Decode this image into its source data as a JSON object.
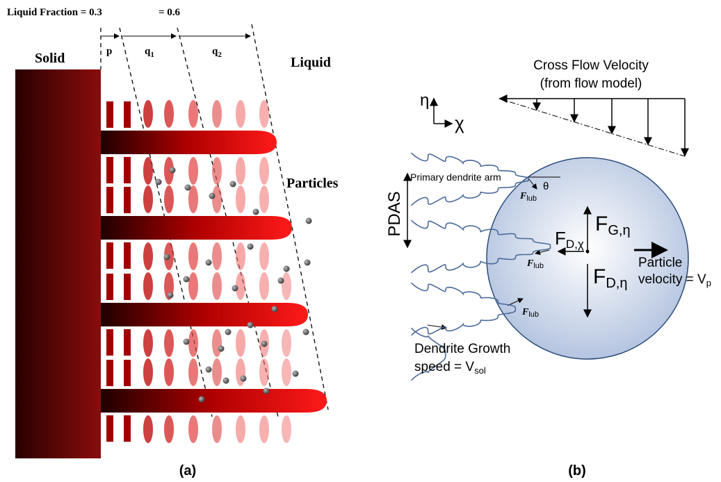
{
  "panel_a": {
    "liquid_fraction": "Liquid Fraction = 0.3",
    "second_fraction": "= 0.6",
    "zones": [
      {
        "main": "p",
        "sub": ""
      },
      {
        "main": "q",
        "sub": "1"
      },
      {
        "main": "q",
        "sub": "2"
      }
    ],
    "solid": "Solid",
    "liquid": "Liquid",
    "particles": "Particles",
    "caption": "(a)"
  },
  "panel_b": {
    "cross_flow": [
      "Cross Flow Velocity",
      "(from flow model)"
    ],
    "axis_eta": "η",
    "axis_chi": "χ",
    "primary_arm": "Primary dendrite arm",
    "theta": "θ",
    "pdas": "PDAS",
    "lubrication_forces": [
      {
        "main": "F",
        "sub": "lub"
      },
      {
        "main": "F",
        "sub": "lub"
      },
      {
        "main": "F",
        "sub": "lub"
      }
    ],
    "gravity_force": {
      "main": "F",
      "sub": "G,η"
    },
    "drag_force_chi": {
      "main": "F",
      "sub": "D,χ"
    },
    "drag_force_eta": {
      "main": "F",
      "sub": "D,η"
    },
    "particle_velocity": {
      "line1": "Particle",
      "line2": "velocity = V",
      "sub": "p"
    },
    "growth_speed": {
      "line1": "Dendrite Growth",
      "line2": "speed = V",
      "sub": "sol"
    },
    "caption": "(b)"
  }
}
